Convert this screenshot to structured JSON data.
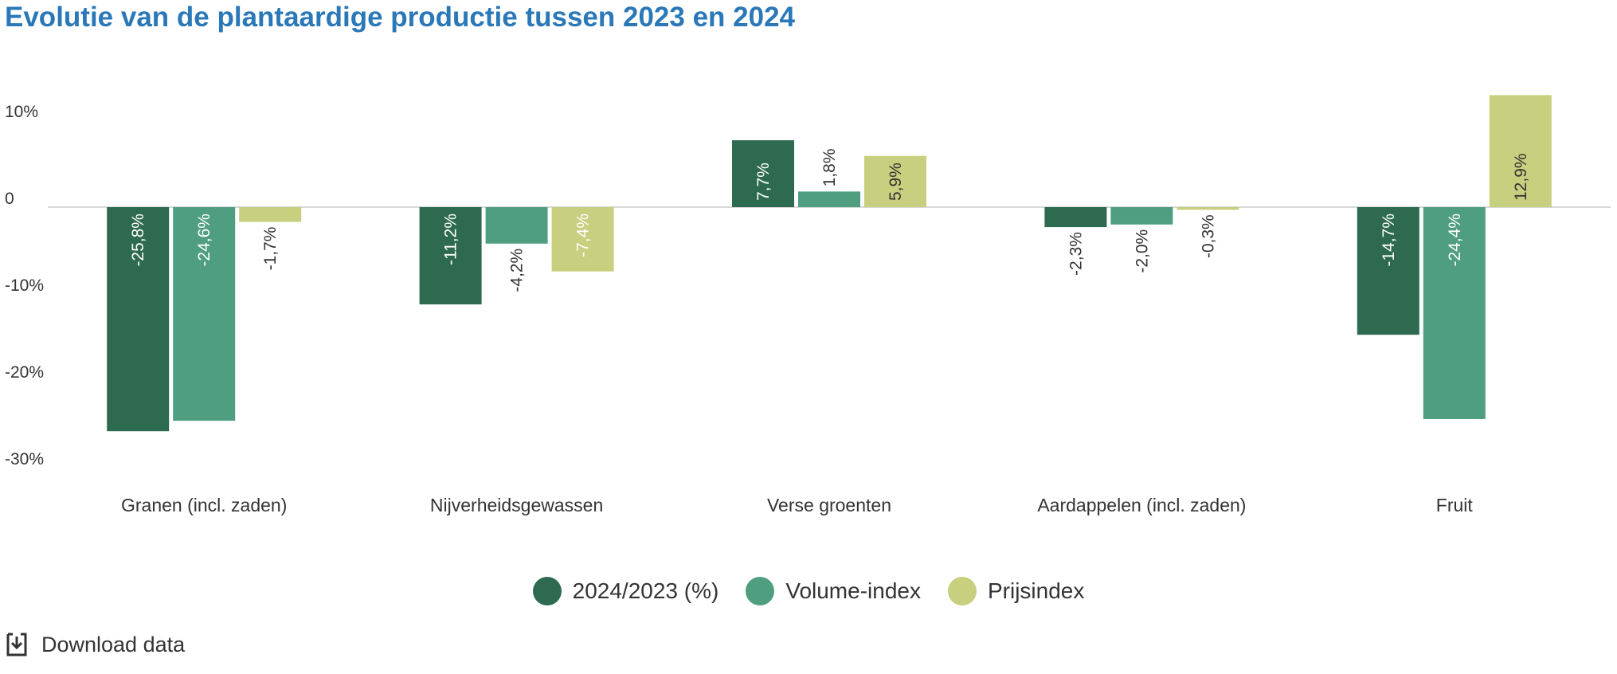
{
  "title": "Evolutie van de plantaardige productie tussen 2023 en 2024",
  "download_label": "Download data",
  "chart_data": {
    "type": "bar",
    "title": "Evolutie van de plantaardige productie tussen 2023 en 2024",
    "categories": [
      "Granen (incl. zaden)",
      "Nijverheidsgewassen",
      "Verse groenten",
      "Aardappelen (incl. zaden)",
      "Fruit"
    ],
    "series": [
      {
        "name": "2024/2023 (%)",
        "color": "#2d6a4f",
        "values": [
          -25.8,
          -11.2,
          7.7,
          -2.3,
          -14.7
        ],
        "labels": [
          "-25,8%",
          "-11,2%",
          "7,7%",
          "-2,3%",
          "-14,7%"
        ]
      },
      {
        "name": "Volume-index",
        "color": "#4e9e7f",
        "values": [
          -24.6,
          -4.2,
          1.8,
          -2.0,
          -24.4
        ],
        "labels": [
          "-24,6%",
          "-4,2%",
          "1,8%",
          "-2,0%",
          "-24,4%"
        ]
      },
      {
        "name": "Prijsindex",
        "color": "#c8cf7e",
        "values": [
          -1.7,
          -7.4,
          5.9,
          -0.3,
          12.9
        ],
        "labels": [
          "-1,7%",
          "-7,4%",
          "5,9%",
          "-0,3%",
          "12,9%"
        ]
      }
    ],
    "y_ticks": [
      10,
      0,
      -10,
      -20,
      -30
    ],
    "y_tick_labels": [
      "10%",
      "0",
      "-10%",
      "-20%",
      "-30%"
    ],
    "ylim": [
      -30,
      10
    ],
    "grid": false,
    "legend": "bottom-center"
  }
}
